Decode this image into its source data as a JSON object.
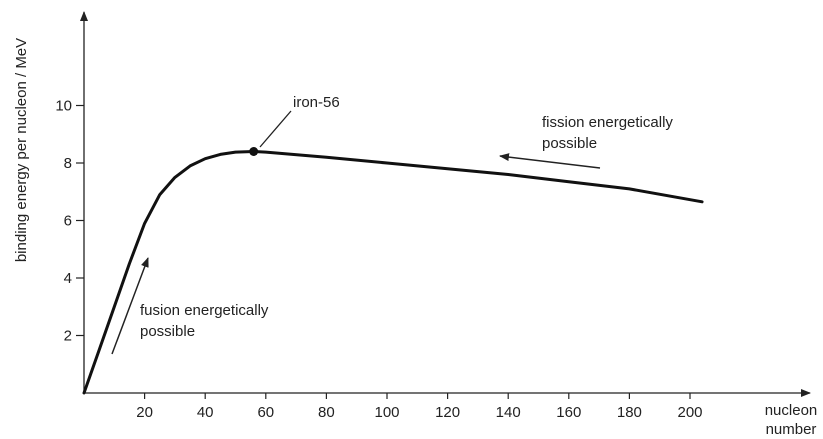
{
  "chart_data": {
    "type": "line",
    "title": "",
    "xlabel": "nucleon number",
    "xlabel_lines": [
      "nucleon",
      "number"
    ],
    "ylabel": "binding energy per nucleon / MeV",
    "xlim": [
      0,
      235
    ],
    "ylim": [
      0,
      13
    ],
    "xticks": [
      20,
      40,
      60,
      80,
      100,
      120,
      140,
      160,
      180,
      200
    ],
    "yticks": [
      2,
      4,
      6,
      8,
      10
    ],
    "grid": false,
    "legend": "none",
    "series": [
      {
        "x": [
          0,
          5,
          10,
          15,
          20,
          25,
          30,
          35,
          40,
          45,
          50,
          56,
          60,
          80,
          100,
          120,
          140,
          160,
          180,
          204
        ],
        "y": [
          0,
          1.5,
          3.0,
          4.5,
          5.9,
          6.9,
          7.5,
          7.9,
          8.15,
          8.3,
          8.38,
          8.4,
          8.38,
          8.2,
          8.0,
          7.8,
          7.6,
          7.35,
          7.1,
          6.65
        ]
      }
    ],
    "points": [
      {
        "label": "iron-56",
        "x": 56,
        "y": 8.4
      }
    ],
    "annotations": [
      {
        "id": "fusion",
        "lines": [
          "fusion energetically",
          "possible"
        ]
      },
      {
        "id": "fission",
        "lines": [
          "fission energetically",
          "possible"
        ]
      }
    ],
    "colors": {
      "line": "#111111",
      "axis": "#222222"
    }
  }
}
